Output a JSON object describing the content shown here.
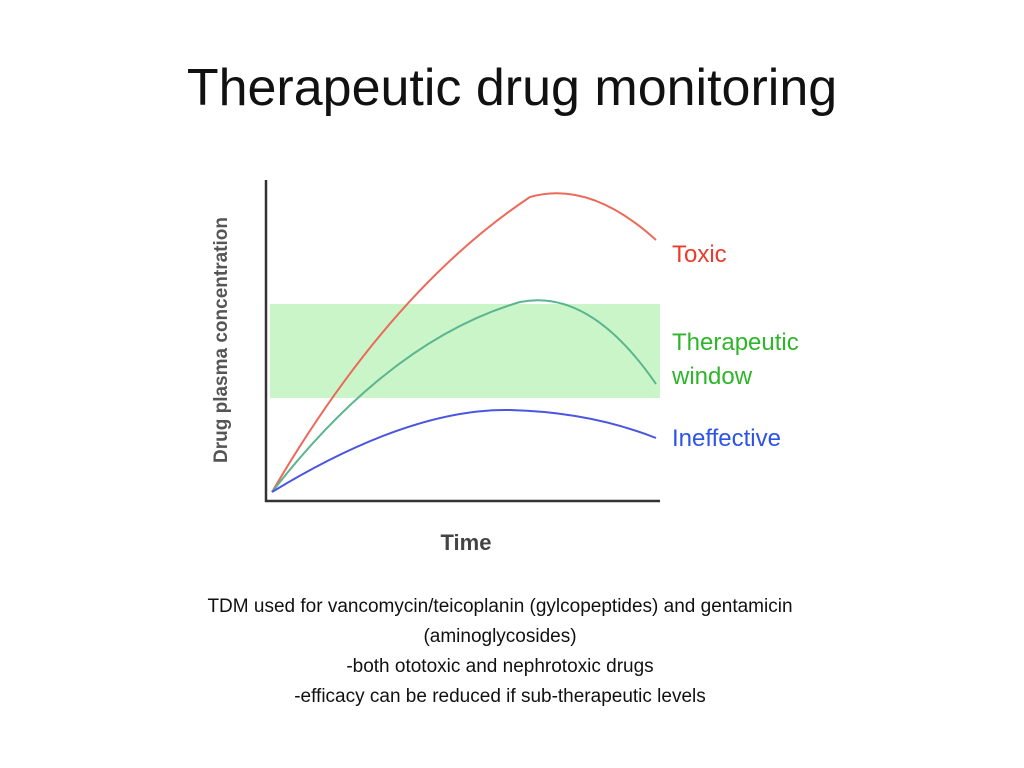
{
  "slide": {
    "title": "Therapeutic drug monitoring"
  },
  "diagram": {
    "y_axis_label": "Drug plasma concentration",
    "x_axis_label": "Time",
    "curves": [
      {
        "name": "Toxic",
        "color": "#ec6a5a"
      },
      {
        "name": "Therapeutic window",
        "color": "#5cb58f"
      },
      {
        "name": "Ineffective",
        "color": "#4a56e0"
      }
    ],
    "labels": {
      "toxic": "Toxic",
      "therapeutic_line1": "Therapeutic",
      "therapeutic_line2": "window",
      "ineffective": "Ineffective"
    },
    "label_colors": {
      "toxic": "#ec3b2b",
      "therapeutic": "#2fb52a",
      "ineffective": "#2d53e8"
    },
    "window_color": "#c9f5c9",
    "axis_color": "#333333"
  },
  "caption": {
    "line1": "TDM used for vancomycin/teicoplanin (gylcopeptides) and gentamicin",
    "line2": "(aminoglycosides)",
    "line3": "-both ototoxic and nephrotoxic drugs",
    "line4": "-efficacy can be reduced if sub-therapeutic levels"
  }
}
